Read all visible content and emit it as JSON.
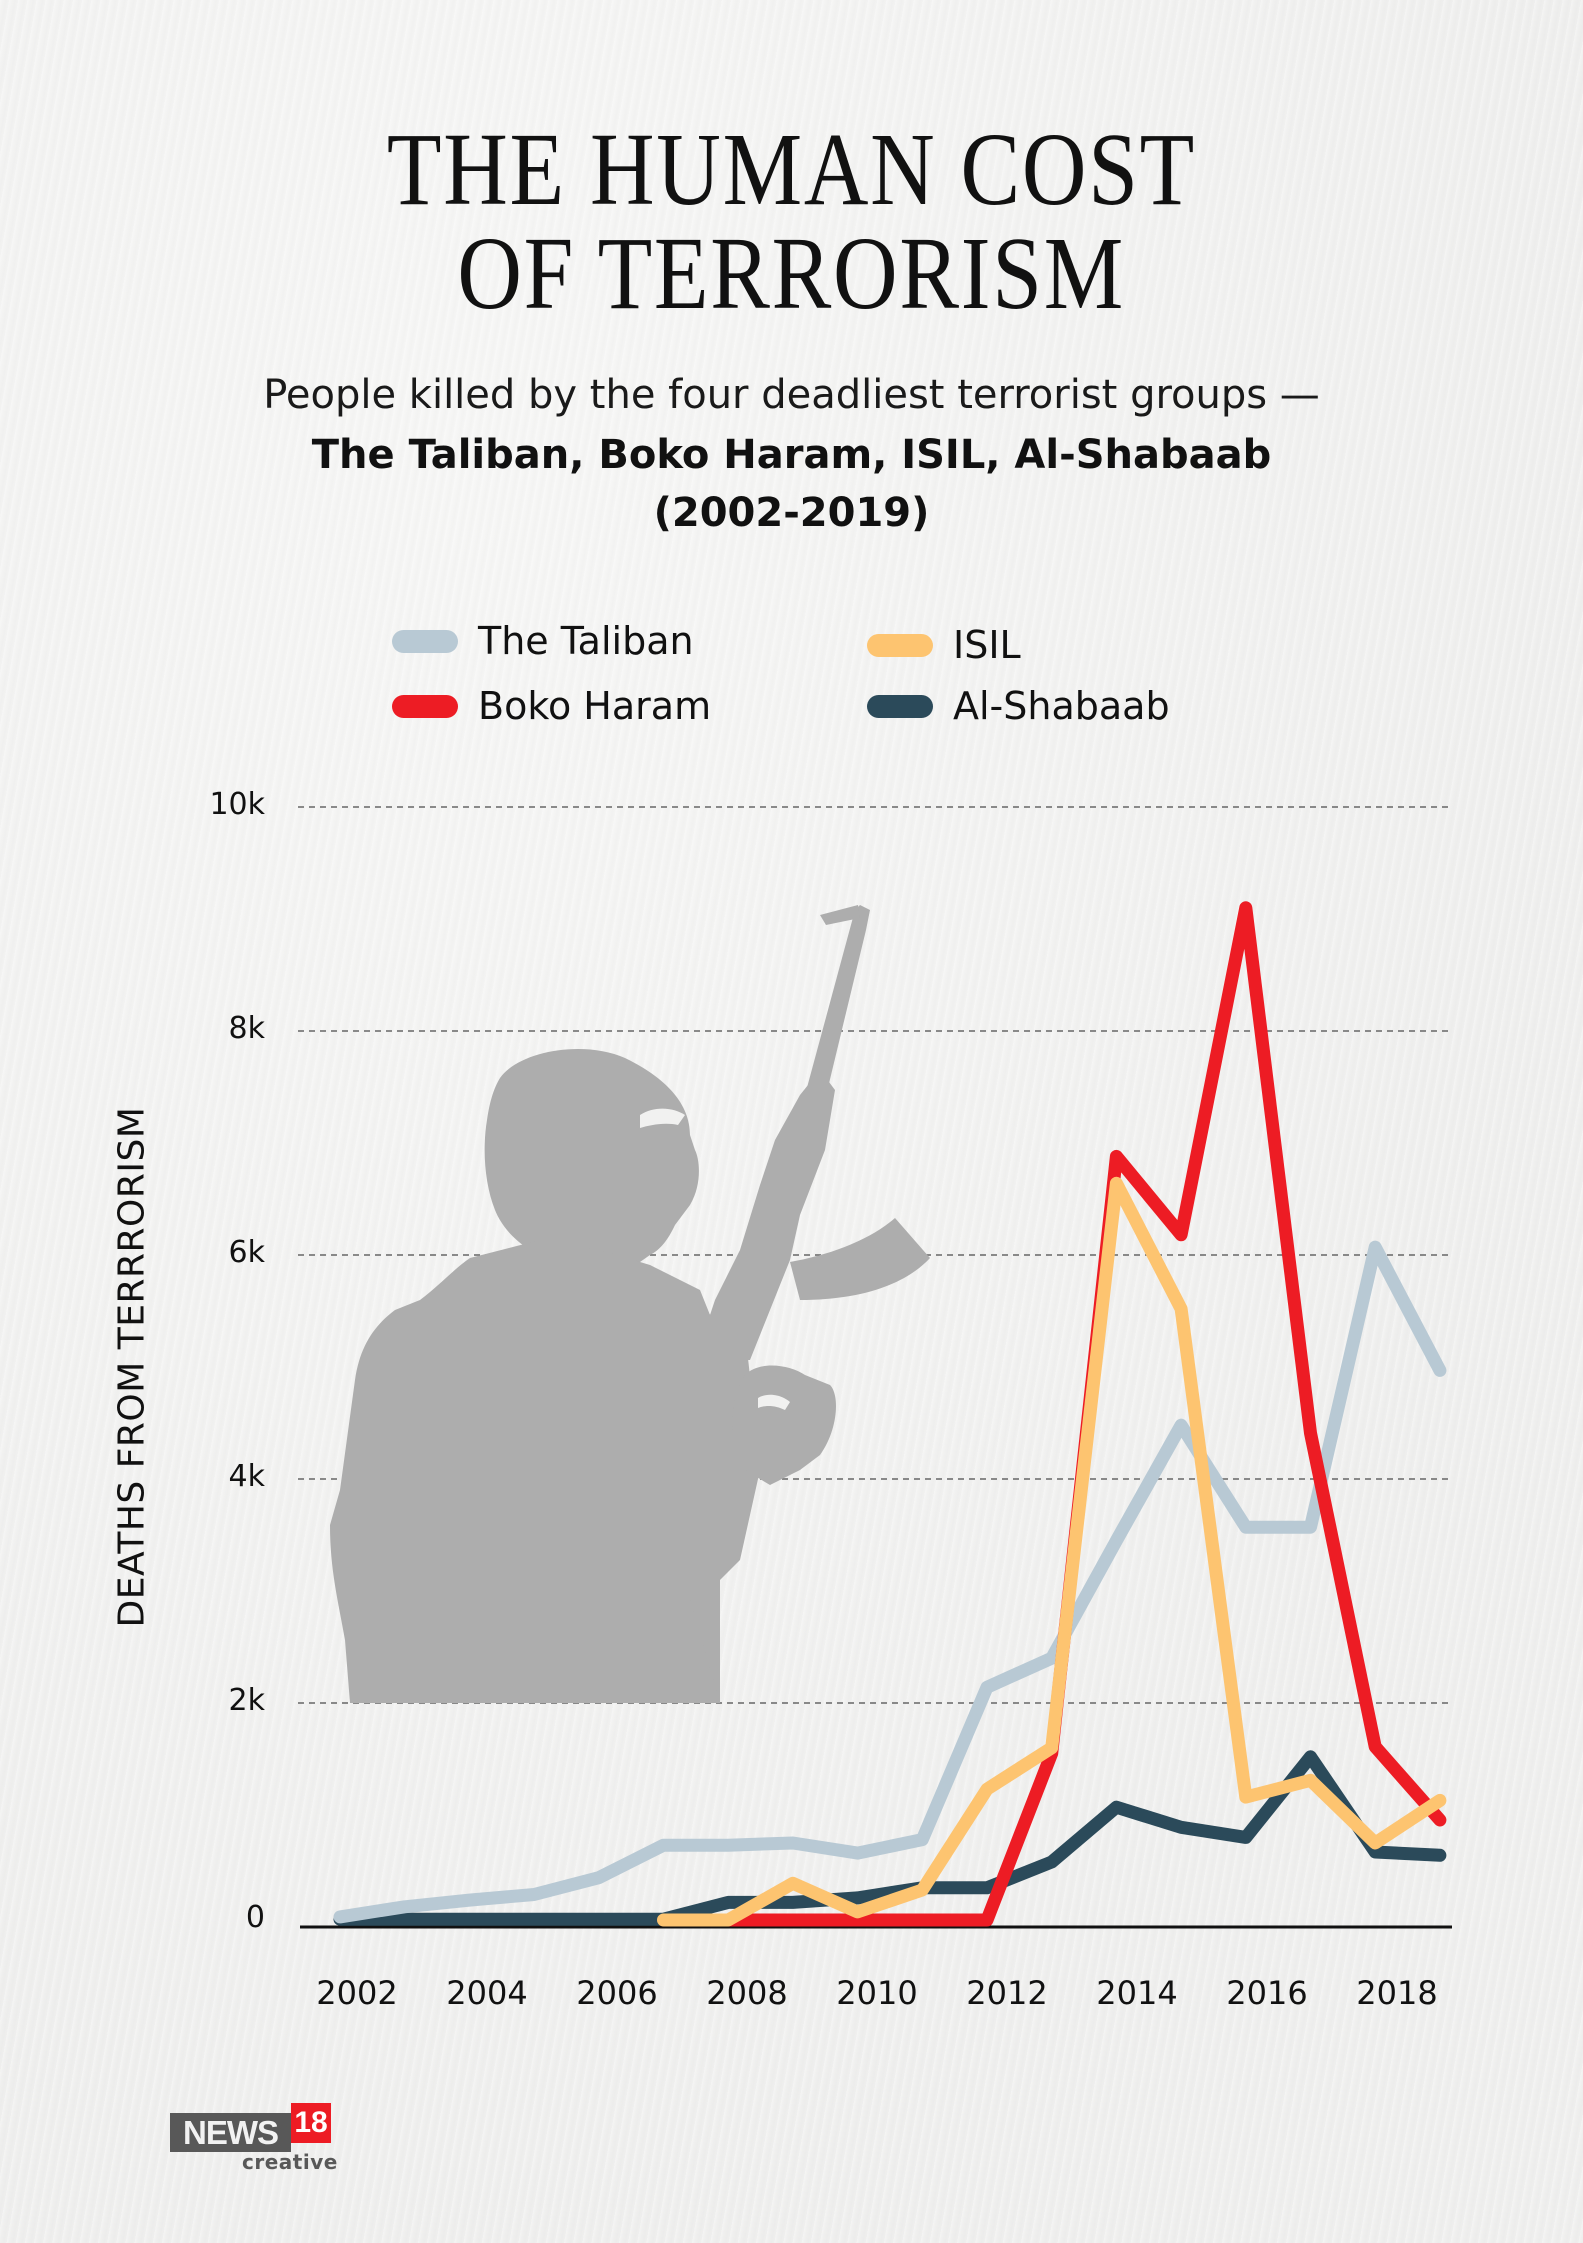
{
  "header": {
    "title_line1": "THE HUMAN COST",
    "title_line2": "OF TERRORISM",
    "subtitle_line1": "People killed by the four deadliest terrorist groups —",
    "subtitle_line2": "The Taliban, Boko Haram, ISIL, Al-Shabaab",
    "subtitle_line3": "(2002-2019)"
  },
  "legend": [
    {
      "label": "The Taliban",
      "color": "#b8c9d4"
    },
    {
      "label": "Boko Haram",
      "color": "#ed1c24"
    },
    {
      "label": "ISIL",
      "color": "#fdc470"
    },
    {
      "label": "Al-Shabaab",
      "color": "#2b4a5a"
    }
  ],
  "axis": {
    "ylabel": "DEATHS FROM TERRRORISM",
    "yticks": [
      "0",
      "2k",
      "4k",
      "6k",
      "8k",
      "10k"
    ],
    "xticks": [
      "2002",
      "2004",
      "2006",
      "2008",
      "2010",
      "2012",
      "2014",
      "2016",
      "2018"
    ]
  },
  "illustration": {
    "icon": "armed-militant-silhouette-icon",
    "color": "#adadad"
  },
  "logo": {
    "brand": "NEWS",
    "number": "18",
    "tagline": "creative",
    "accent": "#ed1c24"
  },
  "chart_data": {
    "type": "line",
    "title": "THE HUMAN COST OF TERRORISM",
    "subtitle": "People killed by the four deadliest terrorist groups — The Taliban, Boko Haram, ISIL, Al-Shabaab (2002-2019)",
    "xlabel": "",
    "ylabel": "DEATHS FROM TERRRORISM",
    "ylim": [
      0,
      10000
    ],
    "ytick_values": [
      0,
      2000,
      4000,
      6000,
      8000,
      10000
    ],
    "grid": "horizontal dashed",
    "legend_position": "top",
    "x": [
      2002,
      2003,
      2004,
      2005,
      2006,
      2007,
      2008,
      2009,
      2010,
      2011,
      2012,
      2013,
      2014,
      2015,
      2016,
      2017,
      2018,
      2019
    ],
    "series": [
      {
        "name": "The Taliban",
        "color": "#b8c9d4",
        "values": [
          90,
          180,
          240,
          290,
          440,
          730,
          730,
          750,
          660,
          780,
          2140,
          2400,
          3450,
          4480,
          3570,
          3570,
          6070,
          4970
        ]
      },
      {
        "name": "Boko Haram",
        "color": "#ed1c24",
        "values": [
          null,
          null,
          null,
          null,
          null,
          null,
          60,
          60,
          60,
          60,
          60,
          1550,
          6880,
          6180,
          9100,
          4410,
          1610,
          955
        ]
      },
      {
        "name": "ISIL",
        "color": "#fdc470",
        "values": [
          null,
          null,
          null,
          null,
          null,
          60,
          60,
          390,
          135,
          330,
          1230,
          1600,
          6640,
          5520,
          1160,
          1310,
          750,
          1130
        ]
      },
      {
        "name": "Al-Shabaab",
        "color": "#2b4a5a",
        "values": [
          70,
          70,
          70,
          70,
          70,
          70,
          220,
          220,
          260,
          350,
          350,
          580,
          1070,
          890,
          800,
          1520,
          670,
          640
        ]
      }
    ]
  }
}
